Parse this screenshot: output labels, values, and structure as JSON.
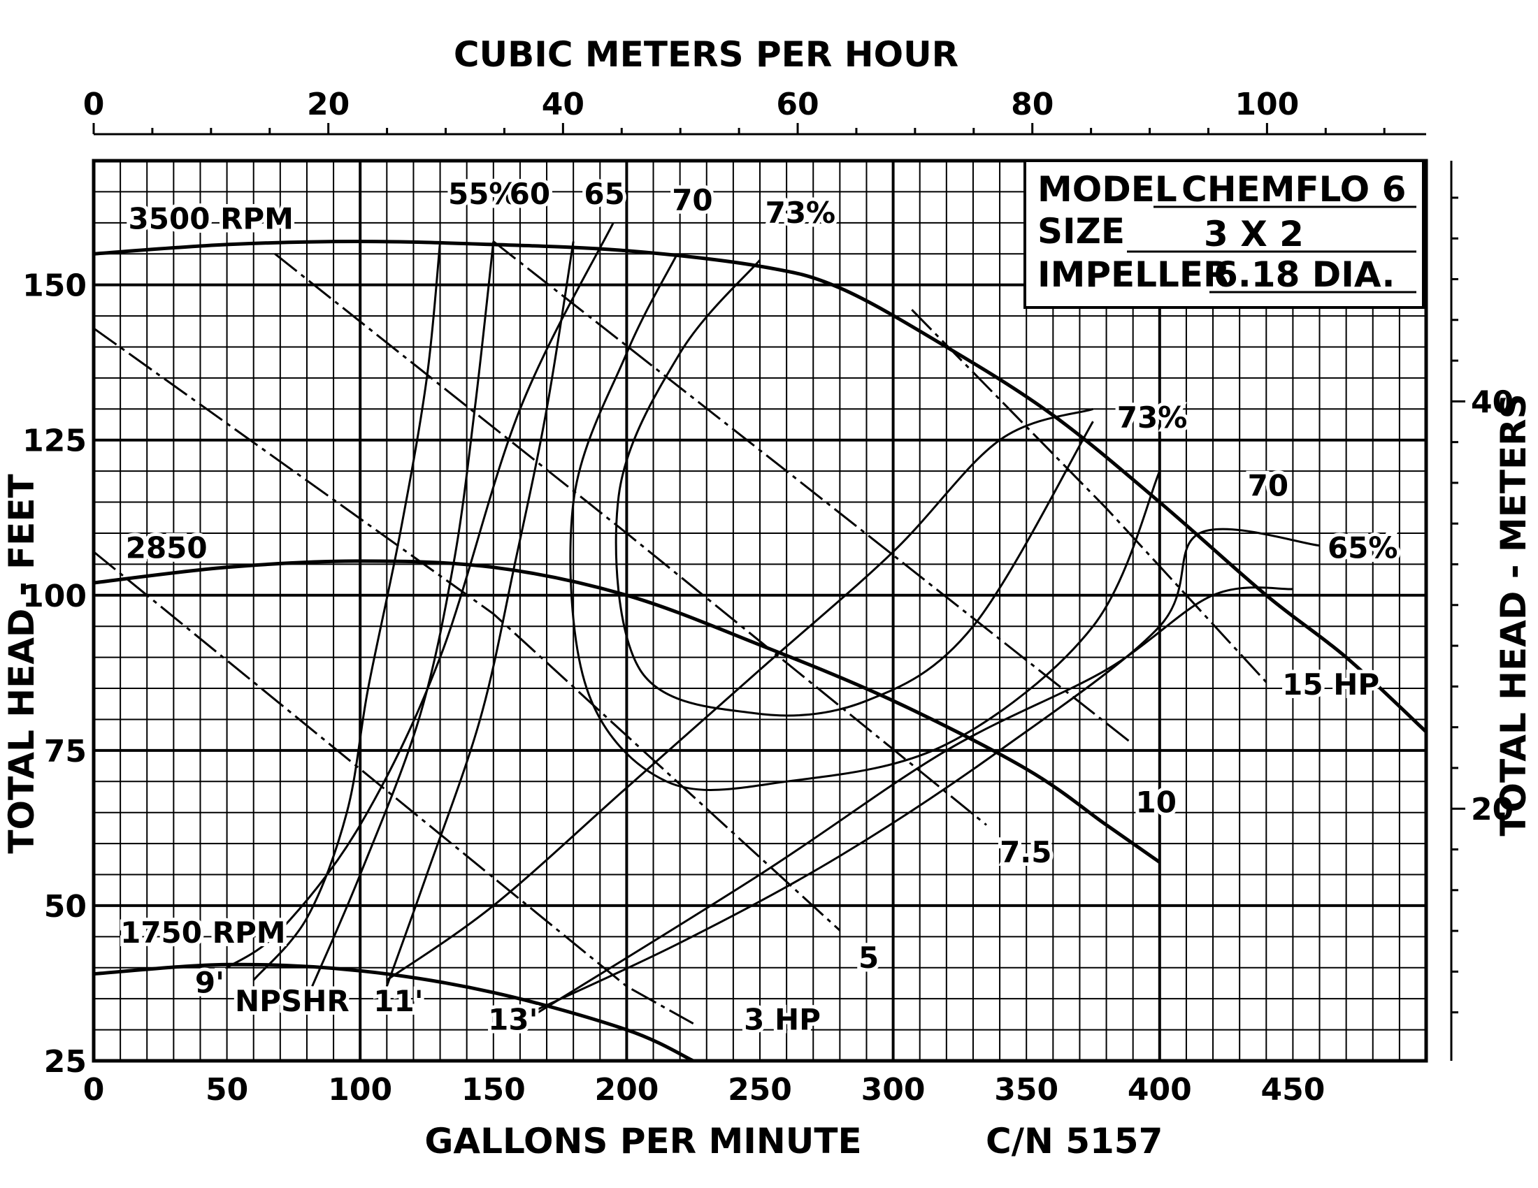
{
  "chart_data": {
    "type": "line",
    "title": "",
    "xlabel": "GALLONS PER MINUTE",
    "x2label": "CUBIC METERS PER HOUR",
    "ylabel": "TOTAL HEAD - FEET",
    "y2label": "TOTAL HEAD - METERS",
    "catalog_number": "C/N 5157",
    "x_range": [
      0,
      500
    ],
    "y_range": [
      25,
      170
    ],
    "x_ticks": [
      "0",
      "50",
      "100",
      "150",
      "200",
      "250",
      "300",
      "350",
      "400",
      "450"
    ],
    "x_tick_values": [
      0,
      50,
      100,
      150,
      200,
      250,
      300,
      350,
      400,
      450
    ],
    "y_ticks": [
      "25",
      "50",
      "75",
      "100",
      "125",
      "150"
    ],
    "y_tick_values": [
      25,
      50,
      75,
      100,
      125,
      150
    ],
    "x2_ticks": [
      "0",
      "20",
      "40",
      "60",
      "80",
      "100"
    ],
    "x2_tick_values": [
      0,
      20,
      40,
      60,
      80,
      100
    ],
    "y2_ticks": [
      "20",
      "40"
    ],
    "y2_tick_values": [
      20,
      40
    ],
    "grid": true,
    "info_box": {
      "model_label": "MODEL",
      "model_value": "CHEMFLO 6",
      "size_label": "SIZE",
      "size_value": "3 X 2",
      "impeller_label": "IMPELLER",
      "impeller_value": "6.18 DIA."
    },
    "speed_curves": [
      {
        "name": "3500 RPM",
        "label_at": [
          13,
          159
        ],
        "points": [
          [
            0,
            155
          ],
          [
            50,
            156.5
          ],
          [
            100,
            157
          ],
          [
            150,
            156.5
          ],
          [
            200,
            155.5
          ],
          [
            250,
            153
          ],
          [
            280,
            149.5
          ],
          [
            320,
            140
          ],
          [
            360,
            129
          ],
          [
            400,
            115
          ],
          [
            440,
            100
          ],
          [
            470,
            90
          ],
          [
            500,
            78
          ]
        ]
      },
      {
        "name": "2850",
        "label_at": [
          12,
          106
        ],
        "points": [
          [
            0,
            102
          ],
          [
            50,
            104.5
          ],
          [
            100,
            105.5
          ],
          [
            150,
            104.5
          ],
          [
            200,
            100
          ],
          [
            250,
            92
          ],
          [
            300,
            83
          ],
          [
            350,
            72
          ],
          [
            380,
            63
          ],
          [
            400,
            57
          ]
        ]
      },
      {
        "name": "1750 RPM",
        "label_at": [
          10,
          44
        ],
        "points": [
          [
            0,
            39
          ],
          [
            50,
            40.5
          ],
          [
            100,
            39.5
          ],
          [
            150,
            36
          ],
          [
            200,
            30
          ],
          [
            225,
            25
          ]
        ]
      }
    ],
    "efficiency_curves": [
      {
        "name": "55%",
        "label_at": [
          133,
          163
        ],
        "points": [
          [
            130,
            157
          ],
          [
            125,
            135
          ],
          [
            115,
            110
          ],
          [
            103,
            85
          ],
          [
            95,
            65
          ],
          [
            80,
            48
          ],
          [
            60,
            38
          ]
        ]
      },
      {
        "name": "60",
        "label_at": [
          156,
          163
        ],
        "points": [
          [
            150,
            157
          ],
          [
            143,
            130
          ],
          [
            135,
            105
          ],
          [
            122,
            80
          ],
          [
            100,
            55
          ],
          [
            82,
            37
          ]
        ]
      },
      {
        "name": "65",
        "label_at": [
          184,
          163
        ],
        "points": [
          [
            180,
            157
          ],
          [
            170,
            130
          ],
          [
            158,
            105
          ],
          [
            145,
            80
          ],
          [
            125,
            55
          ],
          [
            110,
            37
          ]
        ]
      },
      {
        "name": "70",
        "label_at": [
          217,
          162
        ],
        "points": [
          [
            219,
            155
          ],
          [
            200,
            139
          ],
          [
            180,
            115
          ],
          [
            185,
            85
          ],
          [
            215,
            70
          ],
          [
            260,
            70
          ],
          [
            320,
            76
          ],
          [
            375,
            95
          ],
          [
            400,
            120
          ]
        ],
        "labels_extra": [
          {
            "name": "70",
            "label_at": [
              433,
              116
            ]
          }
        ]
      },
      {
        "name": "73%",
        "label_at": [
          252,
          160
        ],
        "points": [
          [
            250,
            154
          ],
          [
            220,
            139
          ],
          [
            197,
            116
          ],
          [
            205,
            88
          ],
          [
            248,
            81
          ],
          [
            290,
            83
          ],
          [
            330,
            95
          ],
          [
            375,
            128
          ]
        ],
        "labels_extra": [
          {
            "name": "73%",
            "label_at": [
              384,
              127
            ]
          }
        ]
      },
      {
        "name": "65%",
        "label_at": [
          463,
          106
        ],
        "points": [
          [
            160,
            31
          ],
          [
            250,
            55
          ],
          [
            320,
            75
          ],
          [
            380,
            88
          ],
          [
            420,
            100
          ],
          [
            450,
            101
          ]
        ]
      }
    ],
    "npsh_curves": [
      {
        "name": "9'",
        "label_at": [
          38,
          36
        ],
        "points": [
          [
            50,
            40
          ],
          [
            70,
            46
          ],
          [
            100,
            63
          ],
          [
            130,
            90
          ],
          [
            160,
            130
          ],
          [
            195,
            160
          ]
        ]
      },
      {
        "name": "11'",
        "label_at": [
          105,
          33
        ],
        "points": [
          [
            110,
            38
          ],
          [
            150,
            50
          ],
          [
            200,
            69
          ],
          [
            250,
            88
          ],
          [
            300,
            107
          ],
          [
            340,
            125
          ],
          [
            375,
            130
          ]
        ]
      },
      {
        "name": "13'",
        "label_at": [
          148,
          30
        ],
        "points": [
          [
            160,
            32
          ],
          [
            220,
            44
          ],
          [
            280,
            58
          ],
          [
            340,
            75
          ],
          [
            400,
            95
          ],
          [
            415,
            110
          ],
          [
            460,
            108
          ]
        ]
      },
      {
        "name": "NPSHR",
        "label_at": [
          53,
          33
        ],
        "points": []
      }
    ],
    "horsepower_lines": [
      {
        "name": "3 HP",
        "label_at": [
          244,
          30
        ],
        "points": [
          [
            0,
            107
          ],
          [
            200,
            37
          ],
          [
            225,
            31
          ]
        ]
      },
      {
        "name": "5",
        "label_at": [
          287,
          40
        ],
        "points": [
          [
            0,
            143
          ],
          [
            150,
            97
          ],
          [
            280,
            46
          ]
        ]
      },
      {
        "name": "7.5",
        "label_at": [
          340,
          57
        ],
        "points": [
          [
            68,
            155
          ],
          [
            200,
            110
          ],
          [
            335,
            63
          ]
        ]
      },
      {
        "name": "10",
        "label_at": [
          391,
          65
        ],
        "points": [
          [
            150,
            157
          ],
          [
            260,
            120
          ],
          [
            390,
            76
          ]
        ]
      },
      {
        "name": "15 HP",
        "label_at": [
          446,
          84
        ],
        "points": [
          [
            307,
            146
          ],
          [
            380,
            114
          ],
          [
            440,
            86
          ]
        ]
      }
    ]
  }
}
